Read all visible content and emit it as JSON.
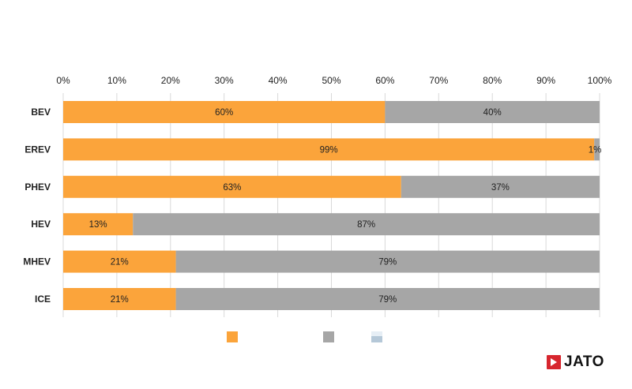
{
  "chart_data": {
    "type": "bar",
    "orientation": "horizontal",
    "stacked": true,
    "categories": [
      "BEV",
      "EREV",
      "PHEV",
      "HEV",
      "MHEV",
      "ICE"
    ],
    "series": [
      {
        "values": [
          60,
          99,
          63,
          13,
          21,
          21
        ],
        "color": "#FBA43B",
        "labels": [
          "60%",
          "99%",
          "63%",
          "13%",
          "21%",
          "21%"
        ]
      },
      {
        "values": [
          40,
          1,
          37,
          87,
          79,
          79
        ],
        "color": "#A6A6A6",
        "labels": [
          "40%",
          "1%",
          "37%",
          "87%",
          "79%",
          "79%"
        ]
      }
    ],
    "xlim": [
      0,
      100
    ],
    "x_ticks": [
      "0%",
      "10%",
      "20%",
      "30%",
      "40%",
      "50%",
      "60%",
      "70%",
      "80%",
      "90%",
      "100%"
    ],
    "x_axis_position": "top",
    "legend": {
      "position": "bottom",
      "swatch_colors": [
        "#FBA43B",
        "#A6A6A6",
        "#B5C8D8"
      ]
    }
  },
  "logo": {
    "text": "JATO",
    "mark_color": "#D7262E"
  }
}
